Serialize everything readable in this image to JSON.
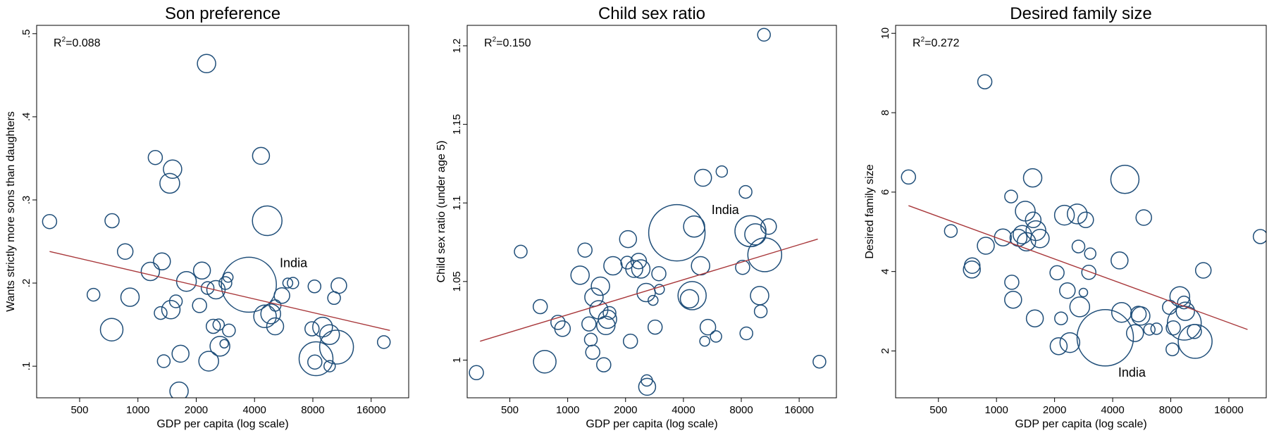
{
  "colors": {
    "bubble": "#1f4e79",
    "fit_line": "#a8373a",
    "frame": "#000000"
  },
  "chart_data": [
    {
      "type": "scatter",
      "title": "Son preference",
      "xlabel": "GDP per capita (log scale)",
      "ylabel": "Wants strictly more sons than daughters",
      "x_scale": "log",
      "xlim": [
        300,
        25000
      ],
      "ylim": [
        0.062,
        0.51
      ],
      "x_ticks": [
        500,
        1000,
        2000,
        4000,
        8000,
        16000
      ],
      "x_tick_labels": [
        "500",
        "1000",
        "2000",
        "4000",
        "8000",
        "16000"
      ],
      "y_ticks": [
        0.1,
        0.2,
        0.3,
        0.4,
        0.5
      ],
      "y_tick_labels": [
        ".1",
        ".2",
        ".3",
        ".4",
        ".5"
      ],
      "r2_prefix": "R",
      "r2_sup": "2",
      "r2_value": "=0.088",
      "fit_line": [
        [
          350,
          0.238
        ],
        [
          20000,
          0.143
        ]
      ],
      "annotation": {
        "text": "India",
        "x": 5400,
        "y": 0.219
      },
      "points": [
        {
          "x": 350,
          "y": 0.274,
          "r": 10
        },
        {
          "x": 590,
          "y": 0.186,
          "r": 9
        },
        {
          "x": 735,
          "y": 0.275,
          "r": 10
        },
        {
          "x": 732,
          "y": 0.144,
          "r": 16
        },
        {
          "x": 860,
          "y": 0.238,
          "r": 11
        },
        {
          "x": 910,
          "y": 0.183,
          "r": 13
        },
        {
          "x": 1160,
          "y": 0.214,
          "r": 13
        },
        {
          "x": 1230,
          "y": 0.351,
          "r": 10
        },
        {
          "x": 1330,
          "y": 0.226,
          "r": 12
        },
        {
          "x": 1310,
          "y": 0.164,
          "r": 9
        },
        {
          "x": 1360,
          "y": 0.106,
          "r": 9
        },
        {
          "x": 1460,
          "y": 0.32,
          "r": 14
        },
        {
          "x": 1510,
          "y": 0.337,
          "r": 13
        },
        {
          "x": 1480,
          "y": 0.168,
          "r": 13
        },
        {
          "x": 1570,
          "y": 0.178,
          "r": 9
        },
        {
          "x": 1660,
          "y": 0.115,
          "r": 12
        },
        {
          "x": 1630,
          "y": 0.07,
          "r": 13
        },
        {
          "x": 1780,
          "y": 0.202,
          "r": 14
        },
        {
          "x": 2080,
          "y": 0.173,
          "r": 10
        },
        {
          "x": 2140,
          "y": 0.215,
          "r": 12
        },
        {
          "x": 2260,
          "y": 0.464,
          "r": 13
        },
        {
          "x": 2290,
          "y": 0.194,
          "r": 9
        },
        {
          "x": 2320,
          "y": 0.106,
          "r": 14
        },
        {
          "x": 2450,
          "y": 0.148,
          "r": 10
        },
        {
          "x": 2530,
          "y": 0.192,
          "r": 13
        },
        {
          "x": 2610,
          "y": 0.15,
          "r": 8
        },
        {
          "x": 2650,
          "y": 0.124,
          "r": 14
        },
        {
          "x": 2790,
          "y": 0.127,
          "r": 6
        },
        {
          "x": 2830,
          "y": 0.2,
          "r": 9
        },
        {
          "x": 2920,
          "y": 0.207,
          "r": 7
        },
        {
          "x": 2950,
          "y": 0.143,
          "r": 9
        },
        {
          "x": 3740,
          "y": 0.198,
          "r": 39
        },
        {
          "x": 4320,
          "y": 0.353,
          "r": 12
        },
        {
          "x": 4530,
          "y": 0.16,
          "r": 16
        },
        {
          "x": 4650,
          "y": 0.275,
          "r": 21
        },
        {
          "x": 4850,
          "y": 0.163,
          "r": 14
        },
        {
          "x": 5110,
          "y": 0.148,
          "r": 12
        },
        {
          "x": 5120,
          "y": 0.173,
          "r": 8
        },
        {
          "x": 5540,
          "y": 0.185,
          "r": 11
        },
        {
          "x": 5940,
          "y": 0.2,
          "r": 7
        },
        {
          "x": 6320,
          "y": 0.2,
          "r": 8
        },
        {
          "x": 7920,
          "y": 0.145,
          "r": 10
        },
        {
          "x": 8160,
          "y": 0.196,
          "r": 9
        },
        {
          "x": 8190,
          "y": 0.105,
          "r": 10
        },
        {
          "x": 8310,
          "y": 0.109,
          "r": 24
        },
        {
          "x": 8980,
          "y": 0.147,
          "r": 14
        },
        {
          "x": 9760,
          "y": 0.138,
          "r": 14
        },
        {
          "x": 9770,
          "y": 0.1,
          "r": 8
        },
        {
          "x": 10300,
          "y": 0.182,
          "r": 9
        },
        {
          "x": 10600,
          "y": 0.123,
          "r": 24
        },
        {
          "x": 10900,
          "y": 0.197,
          "r": 11
        },
        {
          "x": 18600,
          "y": 0.129,
          "r": 9
        }
      ]
    },
    {
      "type": "scatter",
      "title": "Child sex ratio",
      "xlabel": "GDP per capita (log scale)",
      "ylabel": "Child sex ratio (under age 5)",
      "x_scale": "log",
      "xlim": [
        300,
        25000
      ],
      "ylim": [
        0.976,
        1.213
      ],
      "x_ticks": [
        500,
        1000,
        2000,
        4000,
        8000,
        16000
      ],
      "x_tick_labels": [
        "500",
        "1000",
        "2000",
        "4000",
        "8000",
        "16000"
      ],
      "y_ticks": [
        1.0,
        1.05,
        1.1,
        1.15,
        1.2
      ],
      "y_tick_labels": [
        "1",
        "1.05",
        "1.1",
        "1.15",
        "1.2"
      ],
      "r2_prefix": "R",
      "r2_sup": "2",
      "r2_value": "=0.150",
      "fit_line": [
        [
          350,
          1.012
        ],
        [
          20000,
          1.077
        ]
      ],
      "annotation": {
        "text": "India",
        "x": 5600,
        "y": 1.093
      },
      "points": [
        {
          "x": 335,
          "y": 0.992,
          "r": 10
        },
        {
          "x": 570,
          "y": 1.069,
          "r": 9
        },
        {
          "x": 720,
          "y": 1.034,
          "r": 10
        },
        {
          "x": 760,
          "y": 0.999,
          "r": 16
        },
        {
          "x": 890,
          "y": 1.024,
          "r": 10
        },
        {
          "x": 940,
          "y": 1.02,
          "r": 11
        },
        {
          "x": 1160,
          "y": 1.054,
          "r": 13
        },
        {
          "x": 1230,
          "y": 1.07,
          "r": 10
        },
        {
          "x": 1290,
          "y": 1.023,
          "r": 10
        },
        {
          "x": 1370,
          "y": 1.04,
          "r": 13
        },
        {
          "x": 1320,
          "y": 1.013,
          "r": 9
        },
        {
          "x": 1350,
          "y": 1.005,
          "r": 10
        },
        {
          "x": 1480,
          "y": 1.047,
          "r": 13
        },
        {
          "x": 1450,
          "y": 1.032,
          "r": 13
        },
        {
          "x": 1540,
          "y": 0.997,
          "r": 10
        },
        {
          "x": 1580,
          "y": 1.022,
          "r": 13
        },
        {
          "x": 1610,
          "y": 1.026,
          "r": 13
        },
        {
          "x": 1650,
          "y": 1.03,
          "r": 9
        },
        {
          "x": 1720,
          "y": 1.06,
          "r": 13
        },
        {
          "x": 2040,
          "y": 1.062,
          "r": 9
        },
        {
          "x": 2060,
          "y": 1.077,
          "r": 12
        },
        {
          "x": 2120,
          "y": 1.012,
          "r": 10
        },
        {
          "x": 2220,
          "y": 1.058,
          "r": 12
        },
        {
          "x": 2340,
          "y": 1.063,
          "r": 11
        },
        {
          "x": 2400,
          "y": 1.058,
          "r": 13
        },
        {
          "x": 2560,
          "y": 1.043,
          "r": 13
        },
        {
          "x": 2580,
          "y": 0.987,
          "r": 8
        },
        {
          "x": 2590,
          "y": 0.983,
          "r": 12
        },
        {
          "x": 2780,
          "y": 1.038,
          "r": 7
        },
        {
          "x": 2850,
          "y": 1.021,
          "r": 10
        },
        {
          "x": 2980,
          "y": 1.055,
          "r": 10
        },
        {
          "x": 3000,
          "y": 1.045,
          "r": 7
        },
        {
          "x": 3700,
          "y": 1.081,
          "r": 40
        },
        {
          "x": 4300,
          "y": 1.039,
          "r": 13
        },
        {
          "x": 4440,
          "y": 1.041,
          "r": 20
        },
        {
          "x": 4550,
          "y": 1.085,
          "r": 15
        },
        {
          "x": 4910,
          "y": 1.06,
          "r": 13
        },
        {
          "x": 5060,
          "y": 1.116,
          "r": 12
        },
        {
          "x": 5160,
          "y": 1.012,
          "r": 7
        },
        {
          "x": 5360,
          "y": 1.021,
          "r": 11
        },
        {
          "x": 5910,
          "y": 1.015,
          "r": 8
        },
        {
          "x": 6330,
          "y": 1.12,
          "r": 8
        },
        {
          "x": 8130,
          "y": 1.059,
          "r": 10
        },
        {
          "x": 8420,
          "y": 1.107,
          "r": 9
        },
        {
          "x": 8500,
          "y": 1.017,
          "r": 9
        },
        {
          "x": 8930,
          "y": 1.082,
          "r": 22
        },
        {
          "x": 9460,
          "y": 1.08,
          "r": 15
        },
        {
          "x": 9960,
          "y": 1.041,
          "r": 13
        },
        {
          "x": 10100,
          "y": 1.031,
          "r": 9
        },
        {
          "x": 10600,
          "y": 1.067,
          "r": 24
        },
        {
          "x": 11100,
          "y": 1.085,
          "r": 11
        },
        {
          "x": 10500,
          "y": 1.207,
          "r": 9
        },
        {
          "x": 20400,
          "y": 0.999,
          "r": 9
        }
      ]
    },
    {
      "type": "scatter",
      "title": "Desired family size",
      "xlabel": "GDP per capita (log scale)",
      "ylabel": "Desired family size",
      "x_scale": "log",
      "xlim": [
        300,
        25000
      ],
      "ylim": [
        0.82,
        10.2
      ],
      "x_ticks": [
        500,
        1000,
        2000,
        4000,
        8000,
        16000
      ],
      "x_tick_labels": [
        "500",
        "1000",
        "2000",
        "4000",
        "8000",
        "16000"
      ],
      "y_ticks": [
        2,
        4,
        6,
        8,
        10
      ],
      "y_tick_labels": [
        "2",
        "4",
        "6",
        "8",
        "10"
      ],
      "r2_prefix": "R",
      "r2_sup": "2",
      "r2_value": "=0.272",
      "fit_line": [
        [
          350,
          5.66
        ],
        [
          20000,
          2.54
        ]
      ],
      "annotation": {
        "text": "India",
        "x": 4270,
        "y": 1.35
      },
      "points": [
        {
          "x": 350,
          "y": 6.38,
          "r": 10
        },
        {
          "x": 580,
          "y": 5.02,
          "r": 9
        },
        {
          "x": 745,
          "y": 4.05,
          "r": 12
        },
        {
          "x": 748,
          "y": 4.15,
          "r": 11
        },
        {
          "x": 870,
          "y": 8.78,
          "r": 10
        },
        {
          "x": 880,
          "y": 4.65,
          "r": 12
        },
        {
          "x": 1080,
          "y": 4.86,
          "r": 12
        },
        {
          "x": 1190,
          "y": 5.89,
          "r": 9
        },
        {
          "x": 1200,
          "y": 3.73,
          "r": 10
        },
        {
          "x": 1220,
          "y": 3.29,
          "r": 12
        },
        {
          "x": 1300,
          "y": 4.85,
          "r": 12
        },
        {
          "x": 1360,
          "y": 4.93,
          "r": 13
        },
        {
          "x": 1410,
          "y": 5.52,
          "r": 14
        },
        {
          "x": 1430,
          "y": 4.75,
          "r": 13
        },
        {
          "x": 1540,
          "y": 6.36,
          "r": 13
        },
        {
          "x": 1550,
          "y": 5.3,
          "r": 11
        },
        {
          "x": 1600,
          "y": 5.03,
          "r": 14
        },
        {
          "x": 1680,
          "y": 4.83,
          "r": 13
        },
        {
          "x": 1580,
          "y": 2.82,
          "r": 12
        },
        {
          "x": 2060,
          "y": 3.97,
          "r": 10
        },
        {
          "x": 2100,
          "y": 2.12,
          "r": 12
        },
        {
          "x": 2160,
          "y": 2.82,
          "r": 9
        },
        {
          "x": 2250,
          "y": 5.42,
          "r": 14
        },
        {
          "x": 2330,
          "y": 3.52,
          "r": 11
        },
        {
          "x": 2400,
          "y": 2.21,
          "r": 14
        },
        {
          "x": 2620,
          "y": 5.45,
          "r": 14
        },
        {
          "x": 2660,
          "y": 4.63,
          "r": 9
        },
        {
          "x": 2700,
          "y": 3.11,
          "r": 14
        },
        {
          "x": 2820,
          "y": 3.47,
          "r": 6
        },
        {
          "x": 2900,
          "y": 5.3,
          "r": 11
        },
        {
          "x": 3010,
          "y": 3.98,
          "r": 10
        },
        {
          "x": 3060,
          "y": 4.45,
          "r": 8
        },
        {
          "x": 3660,
          "y": 2.33,
          "r": 40
        },
        {
          "x": 4340,
          "y": 4.28,
          "r": 12
        },
        {
          "x": 4450,
          "y": 2.97,
          "r": 14
        },
        {
          "x": 4630,
          "y": 6.32,
          "r": 20
        },
        {
          "x": 5220,
          "y": 2.45,
          "r": 12
        },
        {
          "x": 5440,
          "y": 2.93,
          "r": 11
        },
        {
          "x": 5590,
          "y": 2.88,
          "r": 13
        },
        {
          "x": 5800,
          "y": 5.36,
          "r": 11
        },
        {
          "x": 6200,
          "y": 2.54,
          "r": 8
        },
        {
          "x": 6750,
          "y": 2.56,
          "r": 8
        },
        {
          "x": 7890,
          "y": 3.1,
          "r": 10
        },
        {
          "x": 8160,
          "y": 2.04,
          "r": 9
        },
        {
          "x": 8250,
          "y": 2.58,
          "r": 10
        },
        {
          "x": 8910,
          "y": 3.37,
          "r": 14
        },
        {
          "x": 9360,
          "y": 3.22,
          "r": 9
        },
        {
          "x": 9400,
          "y": 2.7,
          "r": 24
        },
        {
          "x": 9520,
          "y": 3.0,
          "r": 13
        },
        {
          "x": 10600,
          "y": 2.49,
          "r": 10
        },
        {
          "x": 10700,
          "y": 2.24,
          "r": 24
        },
        {
          "x": 11800,
          "y": 4.03,
          "r": 11
        },
        {
          "x": 23300,
          "y": 4.88,
          "r": 10
        }
      ]
    }
  ]
}
